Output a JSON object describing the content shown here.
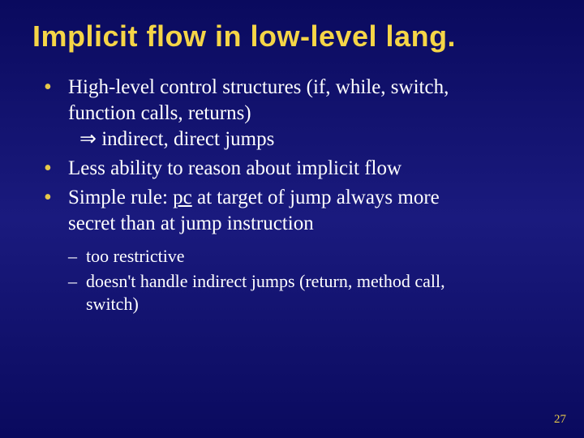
{
  "slide": {
    "title": "Implicit flow in low-level lang.",
    "title_color": "#f5d547",
    "title_fontsize": 36,
    "title_font": "Trebuchet MS",
    "background_gradient": [
      "#0a0a5e",
      "#1a1a7e",
      "#0a0a5e"
    ],
    "body_color": "#ffffff",
    "body_fontsize": 25,
    "bullet_color": "#e6c84a",
    "bullets": [
      {
        "line1": "High-level control structures (if, while, switch,",
        "line2": "function calls, returns)",
        "line3_arrow": "⇒",
        "line3_rest": " indirect, direct jumps"
      },
      {
        "text": "Less ability to reason about implicit flow"
      },
      {
        "prefix": "Simple rule: ",
        "underlined": "pc",
        "mid": " at target of jump always more",
        "line2": "secret than at jump instruction"
      }
    ],
    "sub_bullets": [
      {
        "text": "too restrictive"
      },
      {
        "line1": "doesn't handle indirect jumps (return, method call,",
        "line2": "switch)"
      }
    ],
    "sub_fontsize": 22,
    "page_number": "27",
    "page_number_color": "#e6c84a"
  }
}
